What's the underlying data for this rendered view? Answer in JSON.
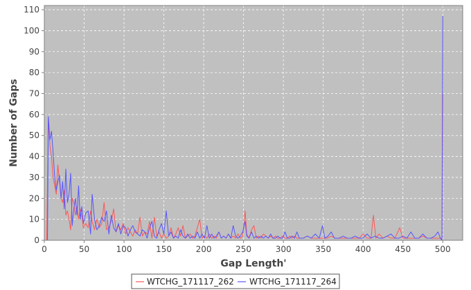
{
  "chart_data": {
    "type": "line",
    "title": "",
    "xlabel": "Gap Length'",
    "ylabel": "Number of Gaps",
    "xlim": [
      0,
      525
    ],
    "ylim": [
      0,
      112
    ],
    "xticks": [
      0,
      50,
      100,
      150,
      200,
      250,
      300,
      350,
      400,
      450,
      500
    ],
    "yticks": [
      0,
      10,
      20,
      30,
      40,
      50,
      60,
      70,
      80,
      90,
      100,
      110
    ],
    "grid": true,
    "legend_position": "bottom",
    "colors": {
      "background": "#c0c0c0",
      "grid": "#ffffff"
    },
    "series": [
      {
        "name": "WTCHG_171117_262",
        "color": "#ff5555",
        "points": [
          [
            2,
            0
          ],
          [
            3,
            0
          ],
          [
            5,
            58
          ],
          [
            7,
            45
          ],
          [
            9,
            40
          ],
          [
            11,
            30
          ],
          [
            13,
            26
          ],
          [
            15,
            22
          ],
          [
            17,
            36
          ],
          [
            19,
            28
          ],
          [
            21,
            20
          ],
          [
            23,
            18
          ],
          [
            25,
            24
          ],
          [
            27,
            12
          ],
          [
            29,
            14
          ],
          [
            31,
            10
          ],
          [
            33,
            5
          ],
          [
            35,
            20
          ],
          [
            37,
            18
          ],
          [
            39,
            12
          ],
          [
            41,
            16
          ],
          [
            43,
            10
          ],
          [
            45,
            15
          ],
          [
            47,
            12
          ],
          [
            49,
            6
          ],
          [
            52,
            8
          ],
          [
            55,
            6
          ],
          [
            58,
            14
          ],
          [
            60,
            9
          ],
          [
            63,
            5
          ],
          [
            66,
            10
          ],
          [
            69,
            6
          ],
          [
            72,
            8
          ],
          [
            75,
            18
          ],
          [
            78,
            5
          ],
          [
            81,
            6
          ],
          [
            84,
            9
          ],
          [
            87,
            15
          ],
          [
            90,
            4
          ],
          [
            93,
            7
          ],
          [
            96,
            5
          ],
          [
            99,
            8
          ],
          [
            102,
            3
          ],
          [
            105,
            6
          ],
          [
            108,
            4
          ],
          [
            111,
            2
          ],
          [
            114,
            5
          ],
          [
            117,
            3
          ],
          [
            120,
            11
          ],
          [
            123,
            2
          ],
          [
            126,
            4
          ],
          [
            129,
            3
          ],
          [
            132,
            9
          ],
          [
            135,
            1
          ],
          [
            138,
            11
          ],
          [
            141,
            2
          ],
          [
            144,
            4
          ],
          [
            147,
            1
          ],
          [
            150,
            3
          ],
          [
            153,
            1
          ],
          [
            156,
            2
          ],
          [
            159,
            6
          ],
          [
            162,
            1
          ],
          [
            165,
            3
          ],
          [
            168,
            6
          ],
          [
            171,
            2
          ],
          [
            174,
            7
          ],
          [
            177,
            1
          ],
          [
            180,
            2
          ],
          [
            183,
            3
          ],
          [
            186,
            1
          ],
          [
            189,
            2
          ],
          [
            192,
            6
          ],
          [
            195,
            10
          ],
          [
            198,
            1
          ],
          [
            201,
            2
          ],
          [
            204,
            1
          ],
          [
            207,
            3
          ],
          [
            210,
            1
          ],
          [
            213,
            2
          ],
          [
            216,
            1
          ],
          [
            219,
            4
          ],
          [
            222,
            1
          ],
          [
            225,
            2
          ],
          [
            228,
            1
          ],
          [
            231,
            3
          ],
          [
            234,
            1
          ],
          [
            237,
            2
          ],
          [
            240,
            1
          ],
          [
            243,
            3
          ],
          [
            246,
            1
          ],
          [
            249,
            2
          ],
          [
            252,
            14
          ],
          [
            254,
            3
          ],
          [
            257,
            1
          ],
          [
            260,
            5
          ],
          [
            263,
            7
          ],
          [
            266,
            1
          ],
          [
            269,
            2
          ],
          [
            272,
            1
          ],
          [
            275,
            3
          ],
          [
            278,
            2
          ],
          [
            281,
            1
          ],
          [
            284,
            2
          ],
          [
            287,
            1
          ],
          [
            290,
            2
          ],
          [
            293,
            1
          ],
          [
            296,
            1
          ],
          [
            299,
            2
          ],
          [
            302,
            1
          ],
          [
            305,
            1
          ],
          [
            308,
            2
          ],
          [
            311,
            1
          ],
          [
            314,
            2
          ],
          [
            317,
            1
          ],
          [
            320,
            1
          ],
          [
            325,
            1
          ],
          [
            330,
            2
          ],
          [
            335,
            1
          ],
          [
            340,
            1
          ],
          [
            345,
            1
          ],
          [
            350,
            1
          ],
          [
            355,
            1
          ],
          [
            360,
            2
          ],
          [
            365,
            1
          ],
          [
            370,
            1
          ],
          [
            375,
            1
          ],
          [
            380,
            1
          ],
          [
            385,
            1
          ],
          [
            390,
            1
          ],
          [
            395,
            1
          ],
          [
            400,
            3
          ],
          [
            405,
            1
          ],
          [
            410,
            1
          ],
          [
            413,
            12
          ],
          [
            416,
            1
          ],
          [
            420,
            3
          ],
          [
            425,
            1
          ],
          [
            430,
            2
          ],
          [
            435,
            1
          ],
          [
            440,
            1
          ],
          [
            446,
            6
          ],
          [
            450,
            1
          ],
          [
            455,
            1
          ],
          [
            460,
            1
          ],
          [
            465,
            1
          ],
          [
            470,
            1
          ],
          [
            475,
            2
          ],
          [
            480,
            1
          ],
          [
            485,
            1
          ],
          [
            490,
            1
          ],
          [
            495,
            1
          ],
          [
            498,
            1
          ],
          [
            499,
            0
          ],
          [
            500,
            70
          ]
        ]
      },
      {
        "name": "WTCHG_171117_264",
        "color": "#5555ff",
        "points": [
          [
            3,
            0
          ],
          [
            4,
            0
          ],
          [
            5,
            59
          ],
          [
            7,
            48
          ],
          [
            9,
            52
          ],
          [
            11,
            42
          ],
          [
            13,
            30
          ],
          [
            15,
            24
          ],
          [
            17,
            28
          ],
          [
            19,
            31
          ],
          [
            21,
            20
          ],
          [
            23,
            28
          ],
          [
            25,
            15
          ],
          [
            27,
            34
          ],
          [
            29,
            18
          ],
          [
            31,
            22
          ],
          [
            33,
            32
          ],
          [
            35,
            7
          ],
          [
            37,
            15
          ],
          [
            39,
            20
          ],
          [
            41,
            12
          ],
          [
            43,
            26
          ],
          [
            45,
            10
          ],
          [
            47,
            16
          ],
          [
            49,
            8
          ],
          [
            52,
            13
          ],
          [
            55,
            14
          ],
          [
            58,
            3
          ],
          [
            60,
            22
          ],
          [
            63,
            10
          ],
          [
            66,
            5
          ],
          [
            69,
            7
          ],
          [
            72,
            11
          ],
          [
            75,
            9
          ],
          [
            78,
            14
          ],
          [
            81,
            3
          ],
          [
            84,
            12
          ],
          [
            87,
            6
          ],
          [
            90,
            4
          ],
          [
            93,
            8
          ],
          [
            96,
            3
          ],
          [
            99,
            7
          ],
          [
            102,
            6
          ],
          [
            105,
            2
          ],
          [
            108,
            5
          ],
          [
            111,
            7
          ],
          [
            114,
            4
          ],
          [
            117,
            3
          ],
          [
            120,
            2
          ],
          [
            123,
            5
          ],
          [
            126,
            4
          ],
          [
            129,
            1
          ],
          [
            132,
            6
          ],
          [
            135,
            9
          ],
          [
            138,
            2
          ],
          [
            141,
            1
          ],
          [
            144,
            5
          ],
          [
            147,
            8
          ],
          [
            150,
            3
          ],
          [
            153,
            14
          ],
          [
            156,
            2
          ],
          [
            159,
            4
          ],
          [
            162,
            1
          ],
          [
            165,
            2
          ],
          [
            168,
            1
          ],
          [
            171,
            5
          ],
          [
            174,
            2
          ],
          [
            177,
            1
          ],
          [
            180,
            3
          ],
          [
            183,
            1
          ],
          [
            186,
            2
          ],
          [
            189,
            1
          ],
          [
            192,
            4
          ],
          [
            195,
            1
          ],
          [
            198,
            3
          ],
          [
            201,
            1
          ],
          [
            204,
            7
          ],
          [
            207,
            1
          ],
          [
            210,
            3
          ],
          [
            213,
            1
          ],
          [
            216,
            2
          ],
          [
            219,
            4
          ],
          [
            222,
            1
          ],
          [
            225,
            2
          ],
          [
            228,
            1
          ],
          [
            231,
            3
          ],
          [
            234,
            1
          ],
          [
            237,
            7
          ],
          [
            240,
            2
          ],
          [
            243,
            1
          ],
          [
            246,
            2
          ],
          [
            249,
            4
          ],
          [
            252,
            9
          ],
          [
            254,
            2
          ],
          [
            257,
            1
          ],
          [
            260,
            4
          ],
          [
            263,
            1
          ],
          [
            266,
            2
          ],
          [
            269,
            1
          ],
          [
            272,
            2
          ],
          [
            275,
            1
          ],
          [
            278,
            2
          ],
          [
            281,
            1
          ],
          [
            284,
            3
          ],
          [
            287,
            1
          ],
          [
            290,
            1
          ],
          [
            293,
            2
          ],
          [
            296,
            1
          ],
          [
            299,
            1
          ],
          [
            302,
            4
          ],
          [
            305,
            1
          ],
          [
            308,
            1
          ],
          [
            311,
            2
          ],
          [
            314,
            1
          ],
          [
            317,
            4
          ],
          [
            320,
            1
          ],
          [
            325,
            1
          ],
          [
            330,
            2
          ],
          [
            335,
            1
          ],
          [
            340,
            3
          ],
          [
            345,
            1
          ],
          [
            349,
            7
          ],
          [
            352,
            1
          ],
          [
            356,
            2
          ],
          [
            360,
            4
          ],
          [
            364,
            1
          ],
          [
            370,
            1
          ],
          [
            375,
            2
          ],
          [
            380,
            1
          ],
          [
            385,
            1
          ],
          [
            390,
            2
          ],
          [
            395,
            1
          ],
          [
            400,
            1
          ],
          [
            405,
            3
          ],
          [
            410,
            1
          ],
          [
            415,
            2
          ],
          [
            420,
            1
          ],
          [
            425,
            1
          ],
          [
            430,
            2
          ],
          [
            435,
            3
          ],
          [
            440,
            1
          ],
          [
            445,
            1
          ],
          [
            450,
            2
          ],
          [
            455,
            1
          ],
          [
            460,
            4
          ],
          [
            465,
            1
          ],
          [
            470,
            1
          ],
          [
            475,
            3
          ],
          [
            480,
            1
          ],
          [
            485,
            1
          ],
          [
            490,
            2
          ],
          [
            494,
            4
          ],
          [
            497,
            1
          ],
          [
            499,
            0
          ],
          [
            500,
            107
          ]
        ]
      }
    ]
  }
}
